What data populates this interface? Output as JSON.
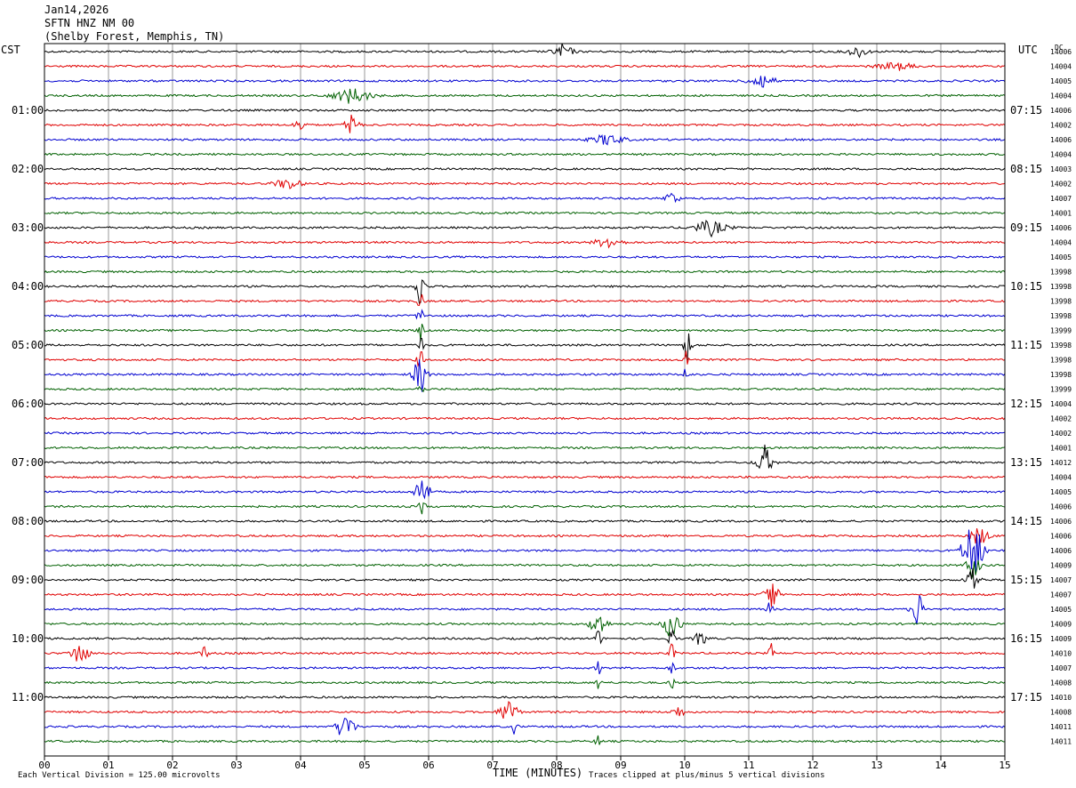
{
  "header": {
    "date": "Jan14,2026",
    "station": "SFTN HNZ NM 00",
    "location": "(Shelby Forest, Memphis, TN)"
  },
  "labels": {
    "left_tz": "CST",
    "right_tz": "UTC",
    "dc": "DC",
    "xlabel": "TIME (MINUTES)",
    "footer_left": "Each Vertical Division =  125.00 microvolts",
    "footer_right": "Traces clipped at plus/minus 5 vertical divisions"
  },
  "colors": {
    "trace_cycle": [
      "#000000",
      "#e00000",
      "#0000d0",
      "#006000"
    ],
    "grid": "#808080",
    "frame": "#000000"
  },
  "chart_data": {
    "type": "line",
    "title": "SFTN HNZ NM 00",
    "xlabel": "TIME (MINUTES)",
    "xlim": [
      0,
      15
    ],
    "x_ticks": [
      "00",
      "01",
      "02",
      "03",
      "04",
      "05",
      "06",
      "07",
      "08",
      "09",
      "10",
      "11",
      "12",
      "13",
      "14",
      "15"
    ],
    "rows": 48,
    "left_hour_labels": [
      {
        "row": 4,
        "label": "01:00"
      },
      {
        "row": 8,
        "label": "02:00"
      },
      {
        "row": 12,
        "label": "03:00"
      },
      {
        "row": 16,
        "label": "04:00"
      },
      {
        "row": 20,
        "label": "05:00"
      },
      {
        "row": 24,
        "label": "06:00"
      },
      {
        "row": 28,
        "label": "07:00"
      },
      {
        "row": 32,
        "label": "08:00"
      },
      {
        "row": 36,
        "label": "09:00"
      },
      {
        "row": 40,
        "label": "10:00"
      },
      {
        "row": 44,
        "label": "11:00"
      }
    ],
    "right_hour_labels": [
      {
        "row": 4,
        "label": "07:15"
      },
      {
        "row": 8,
        "label": "08:15"
      },
      {
        "row": 12,
        "label": "09:15"
      },
      {
        "row": 16,
        "label": "10:15"
      },
      {
        "row": 20,
        "label": "11:15"
      },
      {
        "row": 24,
        "label": "12:15"
      },
      {
        "row": 28,
        "label": "13:15"
      },
      {
        "row": 32,
        "label": "14:15"
      },
      {
        "row": 36,
        "label": "15:15"
      },
      {
        "row": 40,
        "label": "16:15"
      },
      {
        "row": 44,
        "label": "17:15"
      }
    ],
    "dc_offsets": [
      "14006",
      "14004",
      "14005",
      "14004",
      "14006",
      "14002",
      "14006",
      "14004",
      "14003",
      "14002",
      "14007",
      "14001",
      "14006",
      "14004",
      "14005",
      "13998",
      "13998",
      "13998",
      "13998",
      "13999",
      "13998",
      "13998",
      "13998",
      "13999",
      "14004",
      "14002",
      "14002",
      "14001",
      "14012",
      "14004",
      "14005",
      "14006",
      "14006",
      "14006",
      "14006",
      "14009",
      "14007",
      "14007",
      "14005",
      "14009",
      "14009",
      "14010",
      "14007",
      "14008",
      "14010",
      "14008",
      "14011",
      "14011"
    ],
    "events": [
      {
        "row": 0,
        "minute": 8.1,
        "amp": 4,
        "dur": 0.3
      },
      {
        "row": 0,
        "minute": 12.7,
        "amp": 3,
        "dur": 0.3
      },
      {
        "row": 1,
        "minute": 13.3,
        "amp": 2,
        "dur": 0.6
      },
      {
        "row": 2,
        "minute": 11.2,
        "amp": 4,
        "dur": 0.4
      },
      {
        "row": 3,
        "minute": 4.8,
        "amp": 4,
        "dur": 0.6
      },
      {
        "row": 5,
        "minute": 4.8,
        "amp": 6,
        "dur": 0.2
      },
      {
        "row": 5,
        "minute": 4.0,
        "amp": 3,
        "dur": 0.2
      },
      {
        "row": 6,
        "minute": 8.8,
        "amp": 3,
        "dur": 0.5
      },
      {
        "row": 9,
        "minute": 3.8,
        "amp": 3,
        "dur": 0.4
      },
      {
        "row": 10,
        "minute": 9.8,
        "amp": 4,
        "dur": 0.2
      },
      {
        "row": 12,
        "minute": 10.4,
        "amp": 4,
        "dur": 0.5
      },
      {
        "row": 13,
        "minute": 8.8,
        "amp": 3,
        "dur": 0.4
      },
      {
        "row": 16,
        "minute": 5.87,
        "amp": 11,
        "dur": 0.15
      },
      {
        "row": 17,
        "minute": 5.87,
        "amp": 5,
        "dur": 0.1
      },
      {
        "row": 18,
        "minute": 5.87,
        "amp": 5,
        "dur": 0.1
      },
      {
        "row": 19,
        "minute": 5.87,
        "amp": 5,
        "dur": 0.1
      },
      {
        "row": 20,
        "minute": 5.87,
        "amp": 5,
        "dur": 0.1
      },
      {
        "row": 20,
        "minute": 10.05,
        "amp": 9,
        "dur": 0.12
      },
      {
        "row": 21,
        "minute": 5.87,
        "amp": 6,
        "dur": 0.1
      },
      {
        "row": 21,
        "minute": 10.02,
        "amp": 6,
        "dur": 0.08
      },
      {
        "row": 22,
        "minute": 5.87,
        "amp": 12,
        "dur": 0.2
      },
      {
        "row": 22,
        "minute": 10.02,
        "amp": 6,
        "dur": 0.08
      },
      {
        "row": 23,
        "minute": 5.87,
        "amp": 5,
        "dur": 0.1
      },
      {
        "row": 28,
        "minute": 11.25,
        "amp": 8,
        "dur": 0.25
      },
      {
        "row": 30,
        "minute": 5.9,
        "amp": 11,
        "dur": 0.2
      },
      {
        "row": 31,
        "minute": 5.9,
        "amp": 4,
        "dur": 0.1
      },
      {
        "row": 33,
        "minute": 14.6,
        "amp": 5,
        "dur": 0.3
      },
      {
        "row": 34,
        "minute": 14.5,
        "amp": 18,
        "dur": 0.3
      },
      {
        "row": 35,
        "minute": 14.5,
        "amp": 8,
        "dur": 0.2
      },
      {
        "row": 36,
        "minute": 14.5,
        "amp": 8,
        "dur": 0.2
      },
      {
        "row": 37,
        "minute": 11.35,
        "amp": 9,
        "dur": 0.2
      },
      {
        "row": 38,
        "minute": 13.65,
        "amp": 10,
        "dur": 0.2
      },
      {
        "row": 38,
        "minute": 11.33,
        "amp": 5,
        "dur": 0.08
      },
      {
        "row": 39,
        "minute": 8.65,
        "amp": 7,
        "dur": 0.25
      },
      {
        "row": 39,
        "minute": 9.8,
        "amp": 9,
        "dur": 0.25
      },
      {
        "row": 40,
        "minute": 10.25,
        "amp": 4,
        "dur": 0.2
      },
      {
        "row": 40,
        "minute": 8.65,
        "amp": 5,
        "dur": 0.1
      },
      {
        "row": 40,
        "minute": 9.8,
        "amp": 6,
        "dur": 0.1
      },
      {
        "row": 41,
        "minute": 0.55,
        "amp": 7,
        "dur": 0.25
      },
      {
        "row": 41,
        "minute": 2.5,
        "amp": 3,
        "dur": 0.15
      },
      {
        "row": 41,
        "minute": 9.8,
        "amp": 6,
        "dur": 0.08
      },
      {
        "row": 41,
        "minute": 11.35,
        "amp": 5,
        "dur": 0.08
      },
      {
        "row": 42,
        "minute": 8.65,
        "amp": 4,
        "dur": 0.08
      },
      {
        "row": 42,
        "minute": 9.8,
        "amp": 5,
        "dur": 0.08
      },
      {
        "row": 43,
        "minute": 8.65,
        "amp": 4,
        "dur": 0.08
      },
      {
        "row": 43,
        "minute": 9.8,
        "amp": 5,
        "dur": 0.08
      },
      {
        "row": 45,
        "minute": 7.25,
        "amp": 8,
        "dur": 0.25
      },
      {
        "row": 45,
        "minute": 9.9,
        "amp": 3,
        "dur": 0.2
      },
      {
        "row": 46,
        "minute": 4.7,
        "amp": 9,
        "dur": 0.25
      },
      {
        "row": 46,
        "minute": 7.35,
        "amp": 5,
        "dur": 0.08
      },
      {
        "row": 47,
        "minute": 8.65,
        "amp": 3,
        "dur": 0.1
      }
    ]
  }
}
